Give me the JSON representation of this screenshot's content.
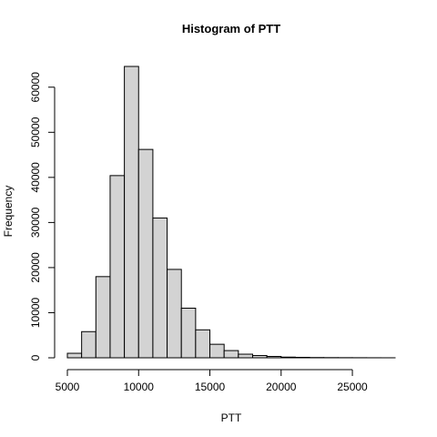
{
  "chart_data": {
    "type": "bar",
    "title": "Histogram of PTT",
    "xlabel": "PTT",
    "ylabel": "Frequency",
    "bin_width": 1000,
    "bins": [
      {
        "start": 5000,
        "end": 6000,
        "count": 1000
      },
      {
        "start": 6000,
        "end": 7000,
        "count": 5800
      },
      {
        "start": 7000,
        "end": 8000,
        "count": 18000
      },
      {
        "start": 8000,
        "end": 9000,
        "count": 40400
      },
      {
        "start": 9000,
        "end": 10000,
        "count": 64600
      },
      {
        "start": 10000,
        "end": 11000,
        "count": 46200
      },
      {
        "start": 11000,
        "end": 12000,
        "count": 31000
      },
      {
        "start": 12000,
        "end": 13000,
        "count": 19600
      },
      {
        "start": 13000,
        "end": 14000,
        "count": 11000
      },
      {
        "start": 14000,
        "end": 15000,
        "count": 6200
      },
      {
        "start": 15000,
        "end": 16000,
        "count": 3000
      },
      {
        "start": 16000,
        "end": 17000,
        "count": 1600
      },
      {
        "start": 17000,
        "end": 18000,
        "count": 800
      },
      {
        "start": 18000,
        "end": 19000,
        "count": 500
      },
      {
        "start": 19000,
        "end": 20000,
        "count": 300
      },
      {
        "start": 20000,
        "end": 21000,
        "count": 150
      },
      {
        "start": 21000,
        "end": 22000,
        "count": 100
      },
      {
        "start": 22000,
        "end": 23000,
        "count": 60
      },
      {
        "start": 23000,
        "end": 24000,
        "count": 40
      },
      {
        "start": 24000,
        "end": 25000,
        "count": 30
      },
      {
        "start": 25000,
        "end": 26000,
        "count": 20
      },
      {
        "start": 26000,
        "end": 27000,
        "count": 10
      },
      {
        "start": 27000,
        "end": 28000,
        "count": 5
      }
    ],
    "xlim": [
      5000,
      28000
    ],
    "ylim": [
      0,
      65000
    ],
    "x_ticks": [
      5000,
      10000,
      15000,
      20000,
      25000
    ],
    "x_tick_labels": [
      "5000",
      "10000",
      "15000",
      "20000",
      "25000"
    ],
    "y_ticks": [
      0,
      10000,
      20000,
      30000,
      40000,
      50000,
      60000
    ],
    "y_tick_labels": [
      "0",
      "10000",
      "20000",
      "30000",
      "40000",
      "50000",
      "60000"
    ],
    "grid": false,
    "bar_color": "#d3d3d3"
  }
}
